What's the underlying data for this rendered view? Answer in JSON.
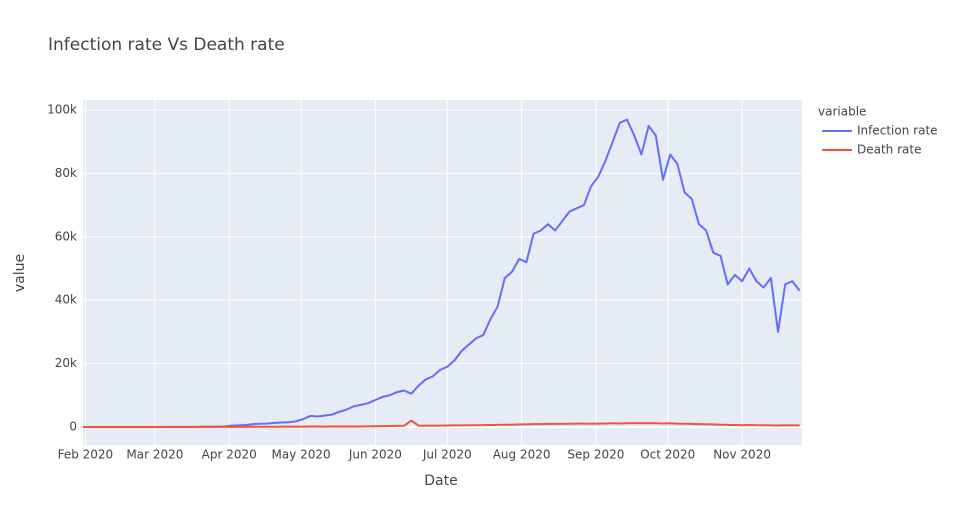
{
  "chart_data": {
    "type": "line",
    "title": "Infection rate Vs Death rate",
    "x_label": "Date",
    "y_label": "value",
    "legend_title": "variable",
    "legend_position": "right",
    "grid": true,
    "background": "#e5ecf6",
    "xlim": [
      "2020-01-31",
      "2020-11-26"
    ],
    "xticks": [
      {
        "value": "2020-02-01",
        "label": "Feb 2020"
      },
      {
        "value": "2020-03-01",
        "label": "Mar 2020"
      },
      {
        "value": "2020-04-01",
        "label": "Apr 2020"
      },
      {
        "value": "2020-05-01",
        "label": "May 2020"
      },
      {
        "value": "2020-06-01",
        "label": "Jun 2020"
      },
      {
        "value": "2020-07-01",
        "label": "Jul 2020"
      },
      {
        "value": "2020-08-01",
        "label": "Aug 2020"
      },
      {
        "value": "2020-09-01",
        "label": "Sep 2020"
      },
      {
        "value": "2020-10-01",
        "label": "Oct 2020"
      },
      {
        "value": "2020-11-01",
        "label": "Nov 2020"
      }
    ],
    "ylim": [
      -5700,
      103200
    ],
    "yticks": [
      0,
      {
        "value": 20000,
        "label": "20k"
      },
      {
        "value": 40000,
        "label": "40k"
      },
      {
        "value": 60000,
        "label": "60k"
      },
      {
        "value": 80000,
        "label": "80k"
      },
      {
        "value": 100000,
        "label": "100k"
      }
    ],
    "x": [
      "2020-01-31",
      "2020-02-02",
      "2020-02-05",
      "2020-02-08",
      "2020-02-11",
      "2020-02-14",
      "2020-02-17",
      "2020-02-20",
      "2020-02-23",
      "2020-02-26",
      "2020-02-29",
      "2020-03-03",
      "2020-03-06",
      "2020-03-09",
      "2020-03-12",
      "2020-03-15",
      "2020-03-18",
      "2020-03-21",
      "2020-03-24",
      "2020-03-27",
      "2020-03-30",
      "2020-04-02",
      "2020-04-05",
      "2020-04-08",
      "2020-04-11",
      "2020-04-14",
      "2020-04-17",
      "2020-04-20",
      "2020-04-23",
      "2020-04-26",
      "2020-04-29",
      "2020-05-02",
      "2020-05-05",
      "2020-05-08",
      "2020-05-11",
      "2020-05-14",
      "2020-05-17",
      "2020-05-20",
      "2020-05-23",
      "2020-05-26",
      "2020-05-29",
      "2020-06-01",
      "2020-06-04",
      "2020-06-07",
      "2020-06-10",
      "2020-06-13",
      "2020-06-16",
      "2020-06-19",
      "2020-06-22",
      "2020-06-25",
      "2020-06-28",
      "2020-07-01",
      "2020-07-04",
      "2020-07-07",
      "2020-07-10",
      "2020-07-13",
      "2020-07-16",
      "2020-07-19",
      "2020-07-22",
      "2020-07-25",
      "2020-07-28",
      "2020-07-31",
      "2020-08-03",
      "2020-08-06",
      "2020-08-09",
      "2020-08-12",
      "2020-08-15",
      "2020-08-18",
      "2020-08-21",
      "2020-08-24",
      "2020-08-27",
      "2020-08-30",
      "2020-09-02",
      "2020-09-05",
      "2020-09-08",
      "2020-09-11",
      "2020-09-14",
      "2020-09-17",
      "2020-09-20",
      "2020-09-23",
      "2020-09-26",
      "2020-09-29",
      "2020-10-02",
      "2020-10-05",
      "2020-10-08",
      "2020-10-11",
      "2020-10-14",
      "2020-10-17",
      "2020-10-20",
      "2020-10-23",
      "2020-10-26",
      "2020-10-29",
      "2020-11-01",
      "2020-11-04",
      "2020-11-07",
      "2020-11-10",
      "2020-11-13",
      "2020-11-16",
      "2020-11-19",
      "2020-11-22",
      "2020-11-25"
    ],
    "series": [
      {
        "name": "Infection rate",
        "color": "#636efa",
        "values": [
          1,
          0,
          0,
          0,
          0,
          0,
          0,
          0,
          0,
          0,
          0,
          2,
          3,
          10,
          15,
          20,
          25,
          50,
          80,
          100,
          150,
          400,
          500,
          600,
          900,
          1000,
          1100,
          1300,
          1400,
          1500,
          1800,
          2500,
          3500,
          3300,
          3600,
          3900,
          4800,
          5500,
          6500,
          7000,
          7500,
          8500,
          9500,
          10000,
          11000,
          11500,
          10500,
          13000,
          15000,
          16000,
          18000,
          19000,
          21000,
          24000,
          26000,
          28000,
          29000,
          34000,
          38000,
          47000,
          49000,
          53000,
          52000,
          61000,
          62000,
          64000,
          62000,
          65000,
          68000,
          69000,
          70000,
          76000,
          79000,
          84000,
          90000,
          96000,
          97000,
          92000,
          86000,
          95000,
          92000,
          78000,
          86000,
          83000,
          74000,
          72000,
          64000,
          62000,
          55000,
          54000,
          45000,
          48000,
          46000,
          50000,
          46000,
          44000,
          47000,
          30000,
          45000,
          46000,
          43000
        ]
      },
      {
        "name": "Death rate",
        "color": "#EF553B",
        "values": [
          0,
          0,
          0,
          0,
          0,
          0,
          0,
          0,
          0,
          0,
          0,
          0,
          0,
          0,
          0,
          0,
          1,
          3,
          5,
          6,
          10,
          20,
          30,
          40,
          50,
          60,
          70,
          80,
          90,
          100,
          110,
          100,
          120,
          130,
          110,
          130,
          120,
          150,
          140,
          160,
          180,
          230,
          270,
          300,
          350,
          380,
          2000,
          380,
          420,
          410,
          430,
          450,
          480,
          500,
          520,
          550,
          580,
          600,
          650,
          700,
          700,
          800,
          800,
          880,
          900,
          950,
          950,
          980,
          1000,
          1050,
          1050,
          1000,
          1050,
          1100,
          1150,
          1100,
          1150,
          1200,
          1150,
          1200,
          1150,
          1100,
          1150,
          1050,
          1000,
          950,
          900,
          850,
          800,
          700,
          650,
          600,
          550,
          600,
          550,
          550,
          500,
          450,
          550,
          500,
          480
        ]
      }
    ]
  }
}
